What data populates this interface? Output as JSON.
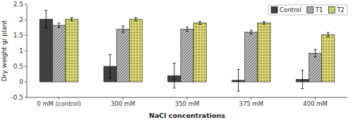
{
  "chart_data": {
    "type": "bar",
    "xlabel": "NaCl concentrations",
    "ylabel": "Dry weight g/ plant",
    "categories": [
      "0 mM (control)",
      "300 mM",
      "350 mM",
      "375 mM",
      "400 mM"
    ],
    "series": [
      {
        "name": "Control",
        "color": "#404040",
        "values": [
          2.02,
          0.5,
          0.2,
          0.05,
          0.08
        ],
        "errors": [
          0.28,
          0.38,
          0.4,
          0.35,
          0.3
        ]
      },
      {
        "name": "T1",
        "color": "#c0c0c0",
        "values": [
          1.82,
          1.7,
          1.7,
          1.6,
          0.92
        ],
        "errors": [
          0.07,
          0.1,
          0.07,
          0.06,
          0.12
        ]
      },
      {
        "name": "T2",
        "color": "#d8d870",
        "values": [
          2.02,
          2.02,
          1.9,
          1.9,
          1.52
        ],
        "errors": [
          0.05,
          0.05,
          0.05,
          0.04,
          0.07
        ]
      }
    ],
    "ylim": [
      -0.5,
      2.5
    ],
    "yticks": [
      -0.5,
      0,
      0.5,
      1,
      1.5,
      2,
      2.5
    ],
    "grid": false,
    "legend": "upper right"
  }
}
